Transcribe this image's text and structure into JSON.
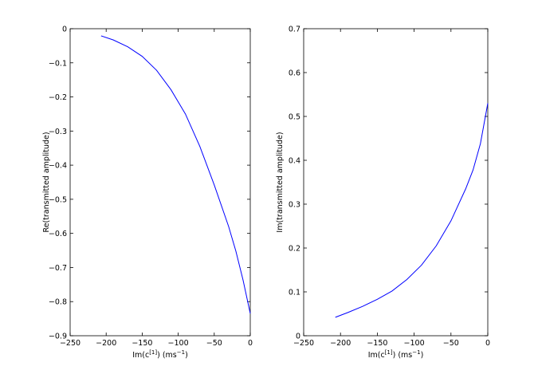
{
  "chart_data": [
    {
      "type": "line",
      "xlabel_base": "Im(c",
      "xlabel_sup": "[1]",
      "xlabel_mid": ") (ms",
      "xlabel_unit_sup": "−1",
      "xlabel_end": ")",
      "ylabel": "Re(transmitted amplitude)",
      "xlim": [
        -250,
        0
      ],
      "ylim": [
        -0.9,
        0
      ],
      "xticks": [
        -250,
        -200,
        -150,
        -100,
        -50,
        0
      ],
      "yticks": [
        0,
        -0.1,
        -0.2,
        -0.3,
        -0.4,
        -0.5,
        -0.6,
        -0.7,
        -0.8,
        -0.9
      ],
      "xtick_labels": [
        "−250",
        "−200",
        "−150",
        "−100",
        "−50",
        "0"
      ],
      "ytick_labels": [
        "0",
        "−0.1",
        "−0.2",
        "−0.3",
        "−0.4",
        "−0.5",
        "−0.6",
        "−0.7",
        "−0.8",
        "−0.9"
      ],
      "line_color": "#0000ff",
      "series": [
        {
          "x": [
            -207,
            -190,
            -170,
            -150,
            -130,
            -110,
            -90,
            -70,
            -50,
            -30,
            -20,
            -10,
            0
          ],
          "y": [
            -0.021,
            -0.033,
            -0.053,
            -0.081,
            -0.122,
            -0.179,
            -0.25,
            -0.345,
            -0.458,
            -0.58,
            -0.652,
            -0.737,
            -0.835
          ]
        }
      ]
    },
    {
      "type": "line",
      "xlabel_base": "Im(c",
      "xlabel_sup": "[1]",
      "xlabel_mid": ") (ms",
      "xlabel_unit_sup": "−1",
      "xlabel_end": ")",
      "ylabel": "Im(transmitted amplitude)",
      "xlim": [
        -250,
        0
      ],
      "ylim": [
        0,
        0.7
      ],
      "xticks": [
        -250,
        -200,
        -150,
        -100,
        -50,
        0
      ],
      "yticks": [
        0,
        0.1,
        0.2,
        0.3,
        0.4,
        0.5,
        0.6,
        0.7
      ],
      "xtick_labels": [
        "−250",
        "−200",
        "−150",
        "−100",
        "−50",
        "0"
      ],
      "ytick_labels": [
        "0",
        "0.1",
        "0.2",
        "0.3",
        "0.4",
        "0.5",
        "0.6",
        "0.7"
      ],
      "line_color": "#0000ff",
      "series": [
        {
          "x": [
            -207,
            -190,
            -170,
            -150,
            -130,
            -110,
            -90,
            -70,
            -50,
            -30,
            -20,
            -10,
            0
          ],
          "y": [
            0.042,
            0.053,
            0.067,
            0.083,
            0.102,
            0.128,
            0.161,
            0.205,
            0.262,
            0.335,
            0.378,
            0.438,
            0.53
          ]
        }
      ]
    }
  ]
}
